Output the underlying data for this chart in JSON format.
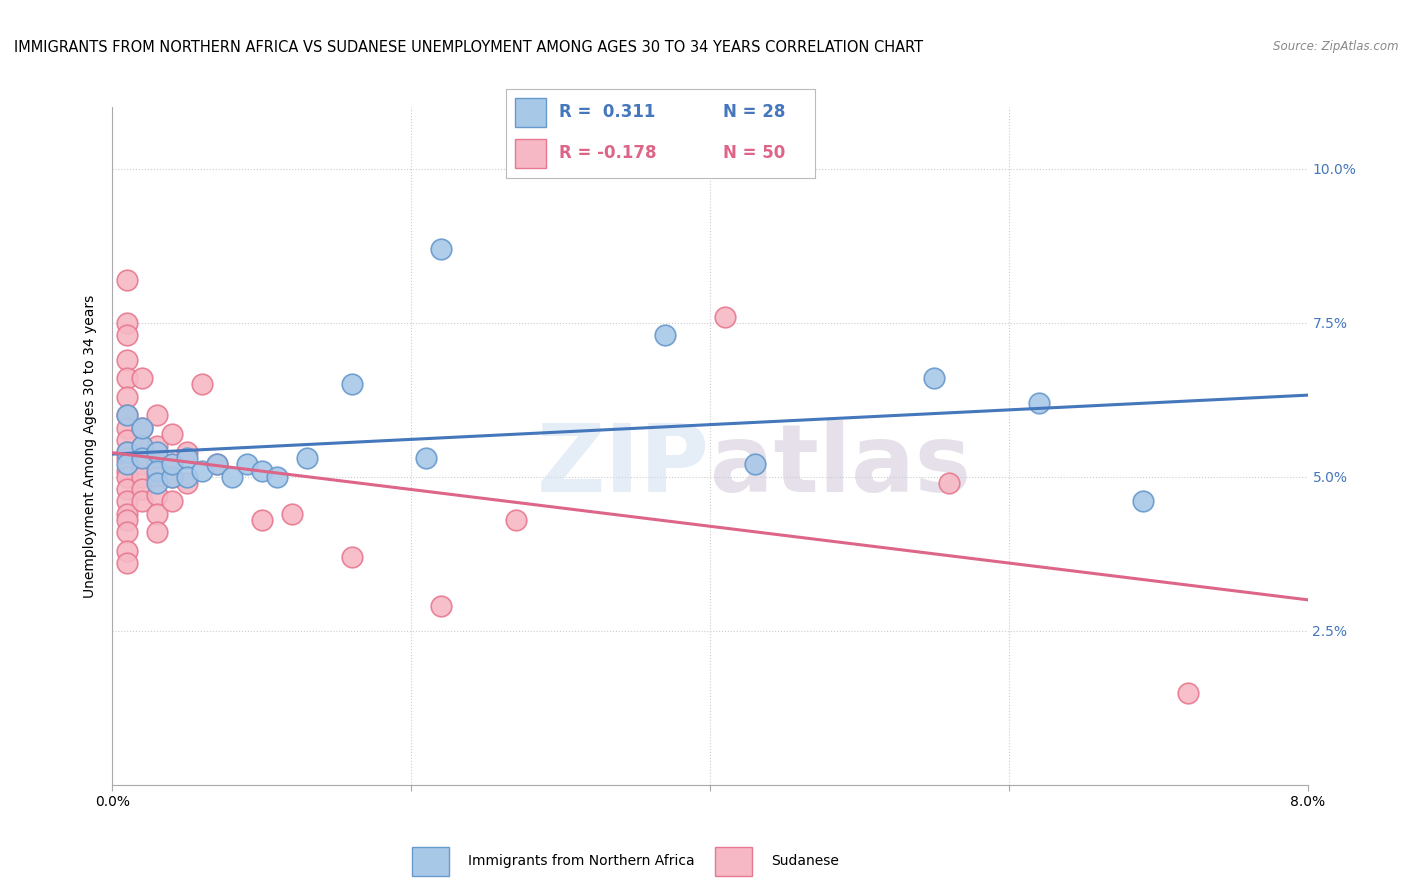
{
  "title": "IMMIGRANTS FROM NORTHERN AFRICA VS SUDANESE UNEMPLOYMENT AMONG AGES 30 TO 34 YEARS CORRELATION CHART",
  "source": "Source: ZipAtlas.com",
  "ylabel": "Unemployment Among Ages 30 to 34 years",
  "xlabel_blue": "Immigrants from Northern Africa",
  "xlabel_pink": "Sudanese",
  "xlim": [
    0.0,
    0.08
  ],
  "ylim": [
    0.0,
    0.11
  ],
  "legend_r_blue": "R =  0.311",
  "legend_n_blue": "N = 28",
  "legend_r_pink": "R = -0.178",
  "legend_n_pink": "N = 50",
  "blue_scatter_color": "#a8c8e8",
  "pink_scatter_color": "#f5b8c4",
  "blue_edge_color": "#6699cc",
  "pink_edge_color": "#e87890",
  "line_blue": "#4477bb",
  "line_pink": "#dd6688",
  "blue_scatter": [
    [
      0.001,
      0.054
    ],
    [
      0.001,
      0.052
    ],
    [
      0.002,
      0.055
    ],
    [
      0.001,
      0.06
    ],
    [
      0.002,
      0.053
    ],
    [
      0.002,
      0.058
    ],
    [
      0.003,
      0.054
    ],
    [
      0.003,
      0.051
    ],
    [
      0.003,
      0.049
    ],
    [
      0.004,
      0.05
    ],
    [
      0.004,
      0.052
    ],
    [
      0.005,
      0.053
    ],
    [
      0.005,
      0.05
    ],
    [
      0.006,
      0.051
    ],
    [
      0.007,
      0.052
    ],
    [
      0.008,
      0.05
    ],
    [
      0.009,
      0.052
    ],
    [
      0.01,
      0.051
    ],
    [
      0.011,
      0.05
    ],
    [
      0.013,
      0.053
    ],
    [
      0.016,
      0.065
    ],
    [
      0.021,
      0.053
    ],
    [
      0.022,
      0.087
    ],
    [
      0.037,
      0.073
    ],
    [
      0.043,
      0.052
    ],
    [
      0.055,
      0.066
    ],
    [
      0.062,
      0.062
    ],
    [
      0.069,
      0.046
    ]
  ],
  "pink_scatter": [
    [
      0.001,
      0.082
    ],
    [
      0.001,
      0.075
    ],
    [
      0.001,
      0.073
    ],
    [
      0.001,
      0.069
    ],
    [
      0.001,
      0.066
    ],
    [
      0.001,
      0.063
    ],
    [
      0.001,
      0.06
    ],
    [
      0.001,
      0.058
    ],
    [
      0.001,
      0.056
    ],
    [
      0.001,
      0.054
    ],
    [
      0.001,
      0.053
    ],
    [
      0.001,
      0.051
    ],
    [
      0.001,
      0.05
    ],
    [
      0.001,
      0.048
    ],
    [
      0.001,
      0.046
    ],
    [
      0.001,
      0.044
    ],
    [
      0.001,
      0.043
    ],
    [
      0.001,
      0.041
    ],
    [
      0.001,
      0.038
    ],
    [
      0.001,
      0.036
    ],
    [
      0.002,
      0.066
    ],
    [
      0.002,
      0.058
    ],
    [
      0.002,
      0.055
    ],
    [
      0.002,
      0.052
    ],
    [
      0.002,
      0.05
    ],
    [
      0.002,
      0.048
    ],
    [
      0.002,
      0.046
    ],
    [
      0.003,
      0.06
    ],
    [
      0.003,
      0.055
    ],
    [
      0.003,
      0.052
    ],
    [
      0.003,
      0.05
    ],
    [
      0.003,
      0.047
    ],
    [
      0.003,
      0.044
    ],
    [
      0.003,
      0.041
    ],
    [
      0.004,
      0.057
    ],
    [
      0.004,
      0.052
    ],
    [
      0.004,
      0.05
    ],
    [
      0.004,
      0.046
    ],
    [
      0.005,
      0.054
    ],
    [
      0.005,
      0.049
    ],
    [
      0.006,
      0.065
    ],
    [
      0.007,
      0.052
    ],
    [
      0.01,
      0.043
    ],
    [
      0.012,
      0.044
    ],
    [
      0.016,
      0.037
    ],
    [
      0.022,
      0.029
    ],
    [
      0.027,
      0.043
    ],
    [
      0.041,
      0.076
    ],
    [
      0.056,
      0.049
    ],
    [
      0.072,
      0.015
    ]
  ],
  "background_color": "#ffffff",
  "title_fontsize": 10.5,
  "source_fontsize": 8.5,
  "axis_label_fontsize": 10,
  "tick_fontsize": 10,
  "legend_fontsize": 12
}
